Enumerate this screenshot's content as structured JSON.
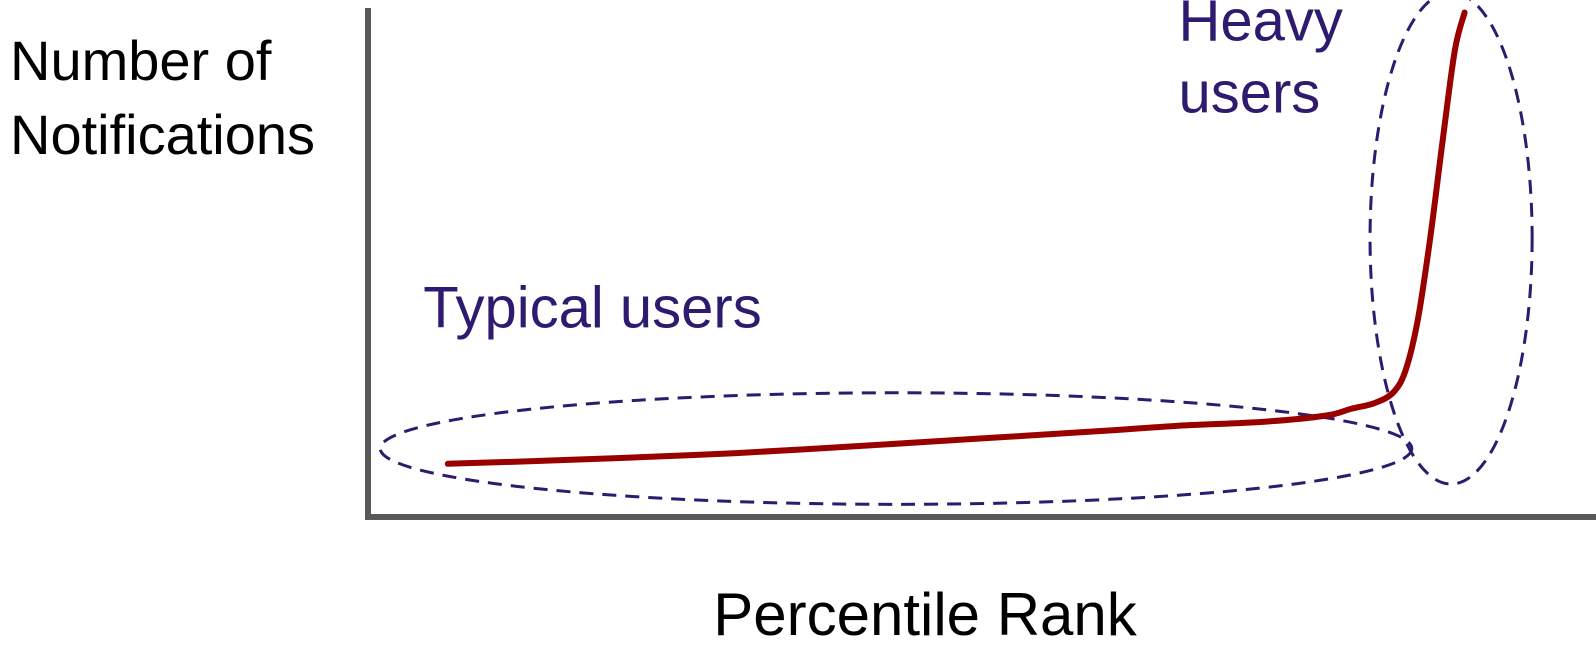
{
  "chart_data": {
    "type": "line",
    "xlabel": "Percentile Rank",
    "ylabel_lines": [
      "Number of",
      "Notifications"
    ],
    "xlim": [
      0,
      100
    ],
    "ylim": [
      0,
      100
    ],
    "grid": false,
    "series": [
      {
        "x": [
          6.5,
          12,
          20,
          30,
          40,
          50,
          60,
          66,
          73,
          78,
          80,
          82,
          83.5,
          84.5,
          85.5,
          86.5,
          87.5,
          88.5,
          89.3
        ],
        "y": [
          10.5,
          10.9,
          11.6,
          12.6,
          14,
          15.5,
          17,
          18,
          18.8,
          20,
          21.3,
          22.5,
          24.6,
          29,
          39,
          55,
          74,
          92,
          99.5
        ]
      }
    ],
    "annotations": [
      {
        "lines": [
          "Typical users"
        ],
        "x": 4.5,
        "y": 37.4
      },
      {
        "lines": [
          "Heavy",
          "users"
        ],
        "x": 66,
        "y": 94
      }
    ],
    "regions": [
      {
        "label": "typical",
        "cx": 43,
        "cy": 13.5,
        "rx": 42,
        "ry": 11
      },
      {
        "label": "heavy",
        "cx": 88.2,
        "cy": 55,
        "rx": 6.6,
        "ry": 48.5
      }
    ],
    "colors": {
      "curve": "#990000",
      "axis": "#595959",
      "annotation": "#2e1a6e",
      "ellipse": "#2e1a6e",
      "text": "#000000"
    }
  }
}
